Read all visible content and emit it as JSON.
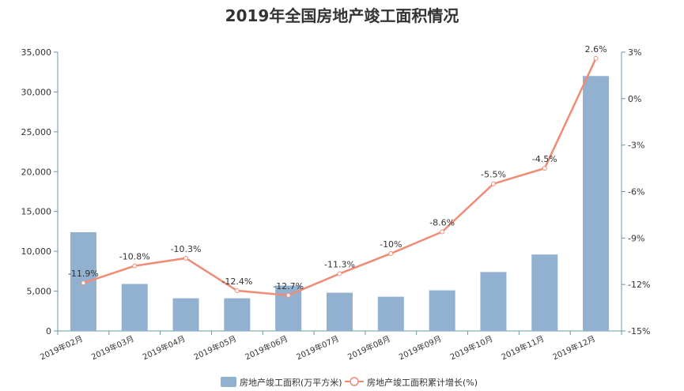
{
  "colors": {
    "bar": "#92b0cf",
    "line": "#f08c76",
    "axis": "#6a9ba6",
    "text": "#333333"
  },
  "chart_data": {
    "type": "bar",
    "title": "2019年全国房地产竣工面积情况",
    "categories": [
      "2019年02月",
      "2019年03月",
      "2019年04月",
      "2019年05月",
      "2019年06月",
      "2019年07月",
      "2019年08月",
      "2019年09月",
      "2019年10月",
      "2019年11月",
      "2019年12月"
    ],
    "series": [
      {
        "name": "房地产竣工面积(万平方米)",
        "type": "bar",
        "axis": "left",
        "values": [
          12400,
          5900,
          4100,
          4100,
          5700,
          4800,
          4300,
          5100,
          7400,
          9600,
          32000
        ]
      },
      {
        "name": "房地产竣工面积累计增长(%)",
        "type": "line",
        "axis": "right",
        "values": [
          -11.9,
          -10.8,
          -10.3,
          -12.4,
          -12.7,
          -11.3,
          -10,
          -8.6,
          -5.5,
          -4.5,
          2.6
        ],
        "labels": [
          "-11.9%",
          "-10.8%",
          "-10.3%",
          "-12.4%",
          "-12.7%",
          "-11.3%",
          "-10%",
          "-8.6%",
          "-5.5%",
          "-4.5%",
          "2.6%"
        ]
      }
    ],
    "left_axis": {
      "min": 0,
      "max": 35000,
      "ticks": [
        "0",
        "5,000",
        "10,000",
        "15,000",
        "20,000",
        "25,000",
        "30,000",
        "35,000"
      ]
    },
    "right_axis": {
      "min": -15,
      "max": 3,
      "ticks": [
        "-15%",
        "-12%",
        "-9%",
        "-6%",
        "-3%",
        "0%",
        "3%"
      ]
    },
    "grid": false,
    "legend_position": "bottom-center"
  }
}
